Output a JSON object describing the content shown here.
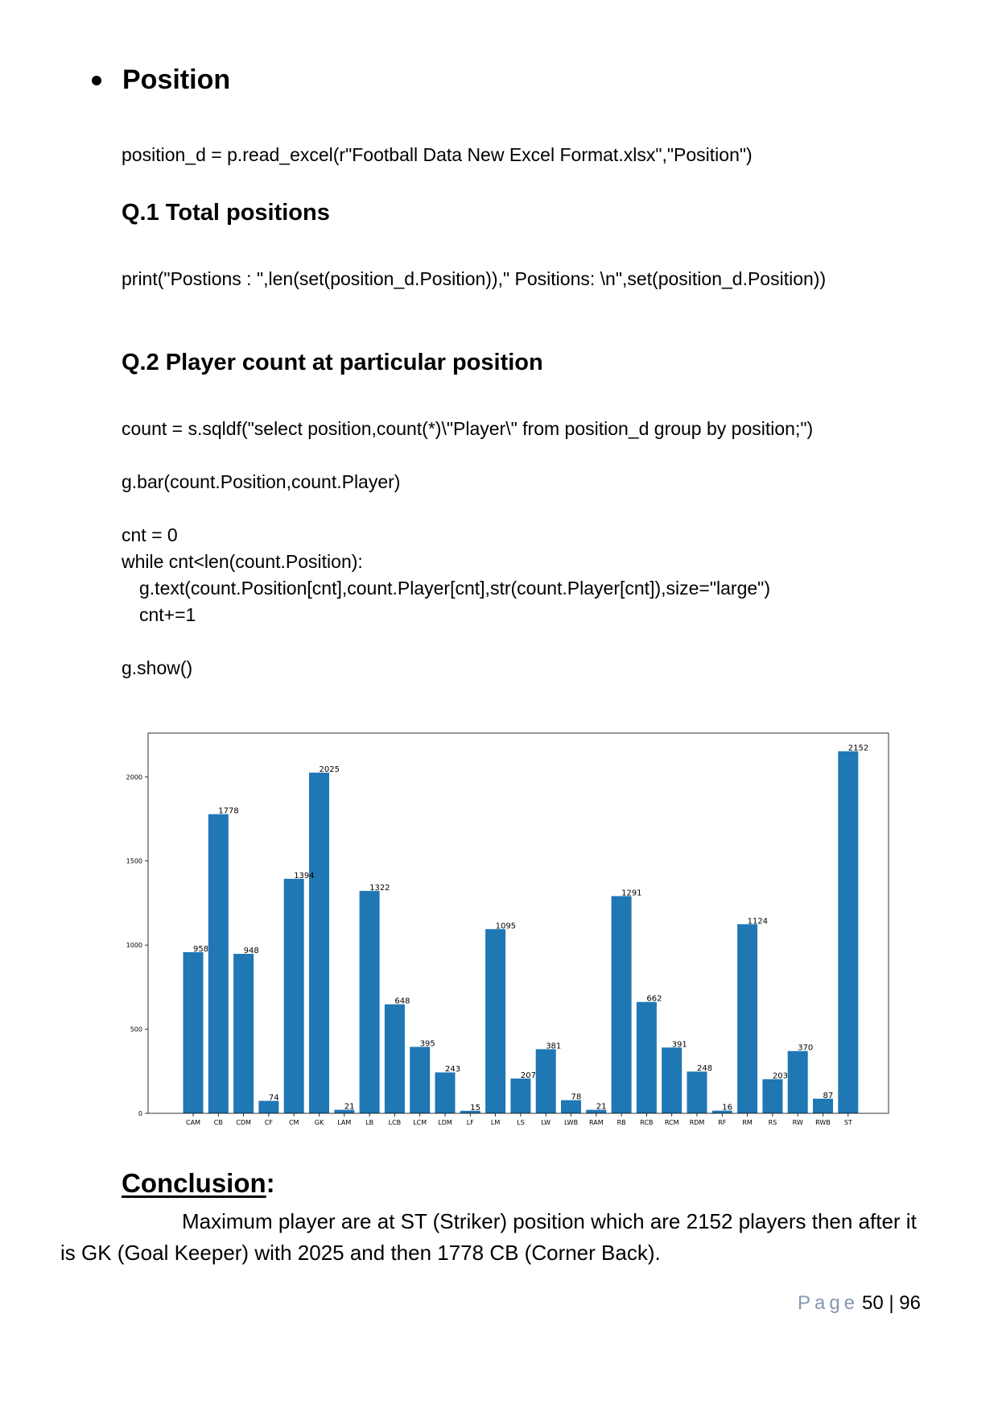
{
  "section": {
    "title": "Position"
  },
  "code_read": "position_d = p.read_excel(r\"Football Data New Excel Format.xlsx\",\"Position\")",
  "q1": {
    "title": "Q.1 Total positions",
    "code": "print(\"Postions : \",len(set(position_d.Position)),\" Positions: \\n\",set(position_d.Position))"
  },
  "q2": {
    "title": "Q.2 Player count at particular position",
    "code_lines": [
      "count = s.sqldf(\"select position,count(*)\\\"Player\\\" from position_d group by position;\")",
      "g.bar(count.Position,count.Player)",
      "cnt = 0",
      "while cnt<len(count.Position):",
      "g.text(count.Position[cnt],count.Player[cnt],str(count.Player[cnt]),size=\"large\")",
      "cnt+=1",
      "g.show()"
    ]
  },
  "chart_data": {
    "type": "bar",
    "categories": [
      "CAM",
      "CB",
      "CDM",
      "CF",
      "CM",
      "GK",
      "LAM",
      "LB",
      "LCB",
      "LCM",
      "LDM",
      "LF",
      "LM",
      "LS",
      "LW",
      "LWB",
      "RAM",
      "RB",
      "RCB",
      "RCM",
      "RDM",
      "RF",
      "RM",
      "RS",
      "RW",
      "RWB",
      "ST"
    ],
    "values": [
      958,
      1778,
      948,
      74,
      1394,
      2025,
      21,
      1322,
      648,
      395,
      243,
      15,
      1095,
      207,
      381,
      78,
      21,
      1291,
      662,
      391,
      248,
      16,
      1124,
      203,
      370,
      87,
      2152
    ],
    "yticks": [
      0,
      500,
      1000,
      1500,
      2000
    ],
    "ylim": [
      0,
      2260
    ],
    "bar_color": "#1f77b4",
    "grid": false
  },
  "conclusion": {
    "title": "Conclusion",
    "colon": ":",
    "line1": "Maximum player are at ST (Striker) position which are 2152 players then after it",
    "line2": "is GK (Goal Keeper) with 2025 and then 1778 CB (Corner Back)."
  },
  "footer": {
    "page_word": "Page",
    "page_number": "50 | 96"
  }
}
